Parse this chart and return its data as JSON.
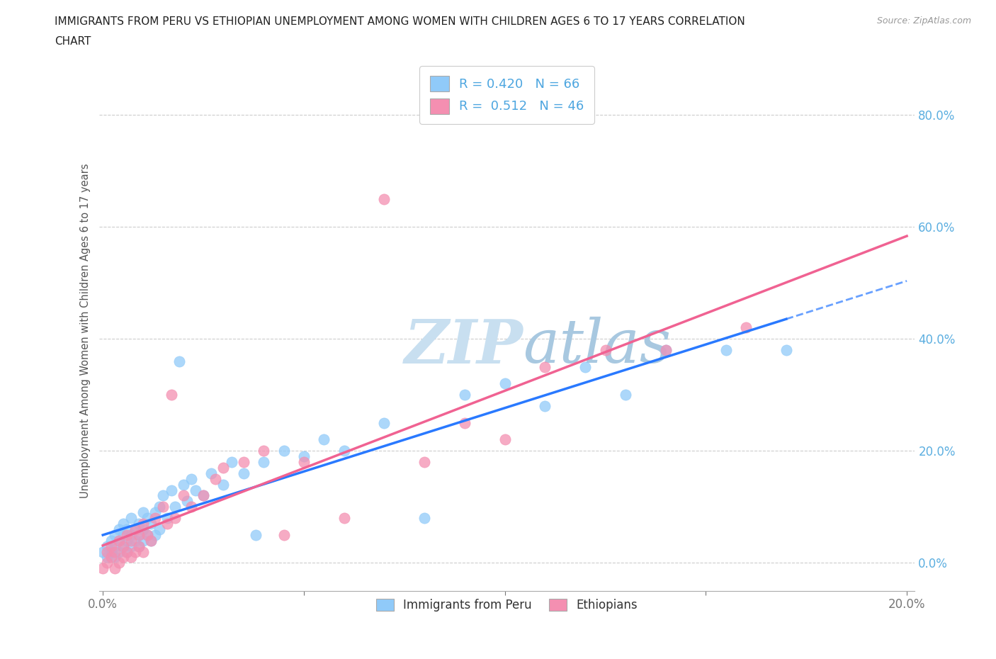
{
  "title_line1": "IMMIGRANTS FROM PERU VS ETHIOPIAN UNEMPLOYMENT AMONG WOMEN WITH CHILDREN AGES 6 TO 17 YEARS CORRELATION",
  "title_line2": "CHART",
  "source": "Source: ZipAtlas.com",
  "ylabel": "Unemployment Among Women with Children Ages 6 to 17 years",
  "xlim": [
    -0.001,
    0.202
  ],
  "ylim": [
    -0.05,
    0.88
  ],
  "yticks": [
    0.0,
    0.2,
    0.4,
    0.6,
    0.8
  ],
  "xticks": [
    0.0,
    0.05,
    0.1,
    0.15,
    0.2
  ],
  "xtick_labels": [
    "0.0%",
    "",
    "",
    "",
    "20.0%"
  ],
  "legend_label1": "Immigrants from Peru",
  "legend_label2": "Ethiopians",
  "R1": 0.42,
  "N1": 66,
  "R2": 0.512,
  "N2": 46,
  "color1": "#90CAF9",
  "color2": "#F48FB1",
  "line_color1": "#2979FF",
  "line_color2": "#F06292",
  "watermark_color": "#C8DFF0",
  "background_color": "#FFFFFF",
  "grid_color": "#CCCCCC",
  "peru_x": [
    0.0,
    0.001,
    0.001,
    0.002,
    0.002,
    0.003,
    0.003,
    0.003,
    0.004,
    0.004,
    0.004,
    0.005,
    0.005,
    0.005,
    0.006,
    0.006,
    0.006,
    0.007,
    0.007,
    0.007,
    0.008,
    0.008,
    0.009,
    0.009,
    0.009,
    0.01,
    0.01,
    0.01,
    0.011,
    0.011,
    0.012,
    0.012,
    0.013,
    0.013,
    0.014,
    0.014,
    0.015,
    0.016,
    0.017,
    0.018,
    0.019,
    0.02,
    0.021,
    0.022,
    0.023,
    0.025,
    0.027,
    0.03,
    0.032,
    0.035,
    0.038,
    0.04,
    0.045,
    0.05,
    0.055,
    0.06,
    0.07,
    0.08,
    0.09,
    0.1,
    0.11,
    0.12,
    0.13,
    0.14,
    0.155,
    0.17
  ],
  "peru_y": [
    0.02,
    0.01,
    0.03,
    0.02,
    0.04,
    0.01,
    0.03,
    0.05,
    0.02,
    0.04,
    0.06,
    0.03,
    0.05,
    0.07,
    0.02,
    0.04,
    0.06,
    0.03,
    0.05,
    0.08,
    0.04,
    0.06,
    0.03,
    0.05,
    0.07,
    0.04,
    0.06,
    0.09,
    0.05,
    0.08,
    0.04,
    0.07,
    0.05,
    0.09,
    0.06,
    0.1,
    0.12,
    0.08,
    0.13,
    0.1,
    0.36,
    0.14,
    0.11,
    0.15,
    0.13,
    0.12,
    0.16,
    0.14,
    0.18,
    0.16,
    0.05,
    0.18,
    0.2,
    0.19,
    0.22,
    0.2,
    0.25,
    0.08,
    0.3,
    0.32,
    0.28,
    0.35,
    0.3,
    0.38,
    0.38,
    0.38
  ],
  "ethiopian_x": [
    0.0,
    0.001,
    0.001,
    0.002,
    0.002,
    0.003,
    0.003,
    0.004,
    0.004,
    0.005,
    0.005,
    0.006,
    0.006,
    0.007,
    0.007,
    0.008,
    0.008,
    0.009,
    0.009,
    0.01,
    0.01,
    0.011,
    0.012,
    0.013,
    0.015,
    0.016,
    0.017,
    0.018,
    0.02,
    0.022,
    0.025,
    0.028,
    0.03,
    0.035,
    0.04,
    0.045,
    0.05,
    0.06,
    0.07,
    0.08,
    0.09,
    0.1,
    0.11,
    0.125,
    0.14,
    0.16
  ],
  "ethiopian_y": [
    -0.01,
    0.0,
    0.02,
    0.01,
    0.03,
    -0.01,
    0.02,
    0.0,
    0.04,
    0.01,
    0.03,
    0.02,
    0.05,
    0.01,
    0.04,
    0.02,
    0.06,
    0.03,
    0.05,
    0.02,
    0.07,
    0.05,
    0.04,
    0.08,
    0.1,
    0.07,
    0.3,
    0.08,
    0.12,
    0.1,
    0.12,
    0.15,
    0.17,
    0.18,
    0.2,
    0.05,
    0.18,
    0.08,
    0.65,
    0.18,
    0.25,
    0.22,
    0.35,
    0.38,
    0.38,
    0.42
  ]
}
